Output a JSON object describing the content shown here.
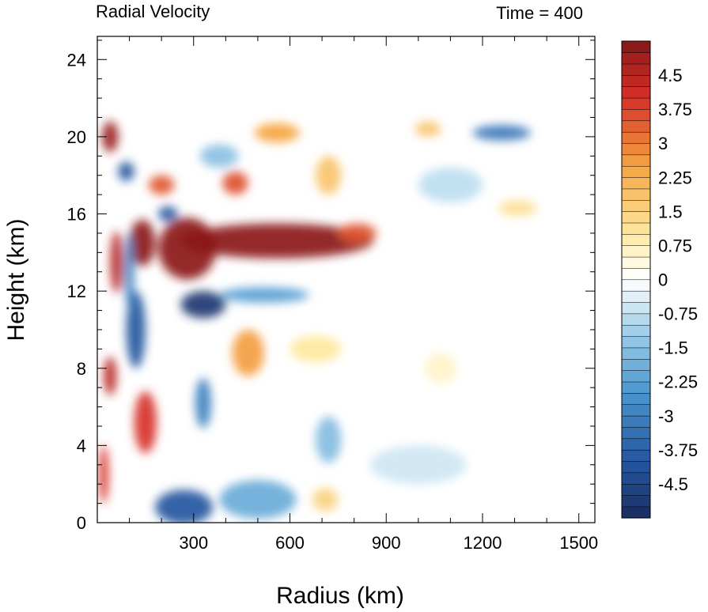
{
  "chart_data": {
    "type": "heatmap",
    "title_left": "Radial Velocity",
    "title_right": "Time = 400",
    "xlabel": "Radius (km)",
    "ylabel": "Height (km)",
    "xlim": [
      0,
      1550
    ],
    "ylim": [
      0,
      25.2
    ],
    "xticks": [
      300,
      600,
      900,
      1200,
      1500
    ],
    "yticks": [
      0,
      4,
      8,
      12,
      16,
      20,
      24
    ],
    "colorbar": {
      "levels": [
        -5.25,
        -5.0,
        -4.75,
        -4.5,
        -4.25,
        -4.0,
        -3.75,
        -3.5,
        -3.25,
        -3.0,
        -2.75,
        -2.5,
        -2.25,
        -2.0,
        -1.75,
        -1.5,
        -1.25,
        -1.0,
        -0.75,
        -0.5,
        -0.25,
        0,
        0.25,
        0.5,
        0.75,
        1.0,
        1.25,
        1.5,
        1.75,
        2.0,
        2.25,
        2.5,
        2.75,
        3.0,
        3.25,
        3.5,
        3.75,
        4.0,
        4.25,
        4.5,
        4.75,
        5.0,
        5.25
      ],
      "tick_labels": [
        "4.5",
        "3.75",
        "3",
        "2.25",
        "1.5",
        "0.75",
        "0",
        "-0.75",
        "-1.5",
        "-2.25",
        "-3",
        "-3.75",
        "-4.5"
      ],
      "tick_values": [
        4.5,
        3.75,
        3.0,
        2.25,
        1.5,
        0.75,
        0,
        -0.75,
        -1.5,
        -2.25,
        -3.0,
        -3.75,
        -4.5
      ],
      "min_color": "#1b2f66",
      "max_color": "#8b1a1a"
    },
    "features": [
      {
        "x": 560,
        "y": 14.6,
        "value": 6.0,
        "sx": 300,
        "sy": 0.9
      },
      {
        "x": 280,
        "y": 14.2,
        "value": 6.0,
        "sx": 90,
        "sy": 1.6
      },
      {
        "x": 140,
        "y": 14.5,
        "value": 5.5,
        "sx": 40,
        "sy": 1.2
      },
      {
        "x": 810,
        "y": 15.0,
        "value": 3.5,
        "sx": 60,
        "sy": 0.5
      },
      {
        "x": 330,
        "y": 11.3,
        "value": -5.0,
        "sx": 70,
        "sy": 0.7
      },
      {
        "x": 520,
        "y": 11.8,
        "value": -2.3,
        "sx": 140,
        "sy": 0.4
      },
      {
        "x": 430,
        "y": 17.6,
        "value": 3.6,
        "sx": 40,
        "sy": 0.6
      },
      {
        "x": 560,
        "y": 20.2,
        "value": 2.5,
        "sx": 70,
        "sy": 0.5
      },
      {
        "x": 720,
        "y": 18.0,
        "value": 1.8,
        "sx": 40,
        "sy": 1.0
      },
      {
        "x": 1030,
        "y": 20.4,
        "value": 1.8,
        "sx": 40,
        "sy": 0.4
      },
      {
        "x": 1260,
        "y": 20.2,
        "value": -3.2,
        "sx": 90,
        "sy": 0.4
      },
      {
        "x": 1100,
        "y": 17.5,
        "value": -0.8,
        "sx": 100,
        "sy": 0.9
      },
      {
        "x": 1310,
        "y": 16.3,
        "value": 1.2,
        "sx": 60,
        "sy": 0.4
      },
      {
        "x": 470,
        "y": 8.8,
        "value": 2.6,
        "sx": 50,
        "sy": 1.2
      },
      {
        "x": 680,
        "y": 9.0,
        "value": 1.0,
        "sx": 80,
        "sy": 0.7
      },
      {
        "x": 1070,
        "y": 8.0,
        "value": 0.6,
        "sx": 50,
        "sy": 0.8
      },
      {
        "x": 720,
        "y": 4.3,
        "value": -1.6,
        "sx": 40,
        "sy": 1.2
      },
      {
        "x": 330,
        "y": 6.2,
        "value": -3.0,
        "sx": 25,
        "sy": 1.3
      },
      {
        "x": 120,
        "y": 10.0,
        "value": -4.0,
        "sx": 30,
        "sy": 2.0
      },
      {
        "x": 40,
        "y": 7.6,
        "value": 4.5,
        "sx": 20,
        "sy": 1.0
      },
      {
        "x": 150,
        "y": 5.2,
        "value": 4.0,
        "sx": 35,
        "sy": 1.6
      },
      {
        "x": 40,
        "y": 20.0,
        "value": 5.0,
        "sx": 25,
        "sy": 0.8
      },
      {
        "x": 90,
        "y": 18.2,
        "value": -4.0,
        "sx": 25,
        "sy": 0.5
      },
      {
        "x": 200,
        "y": 17.5,
        "value": 3.5,
        "sx": 40,
        "sy": 0.5
      },
      {
        "x": 220,
        "y": 16.0,
        "value": -4.0,
        "sx": 30,
        "sy": 0.4
      },
      {
        "x": 270,
        "y": 0.8,
        "value": -4.0,
        "sx": 90,
        "sy": 0.9
      },
      {
        "x": 500,
        "y": 1.2,
        "value": -2.0,
        "sx": 120,
        "sy": 1.0
      },
      {
        "x": 710,
        "y": 1.2,
        "value": 1.5,
        "sx": 40,
        "sy": 0.6
      },
      {
        "x": 20,
        "y": 2.5,
        "value": 4.0,
        "sx": 15,
        "sy": 1.5
      },
      {
        "x": 60,
        "y": 13.5,
        "value": 4.5,
        "sx": 20,
        "sy": 1.6
      },
      {
        "x": 100,
        "y": 13.0,
        "value": -3.0,
        "sx": 15,
        "sy": 2.0
      },
      {
        "x": 380,
        "y": 19.0,
        "value": -1.5,
        "sx": 60,
        "sy": 0.6
      },
      {
        "x": 1000,
        "y": 3.0,
        "value": -0.6,
        "sx": 150,
        "sy": 1.0
      }
    ]
  }
}
